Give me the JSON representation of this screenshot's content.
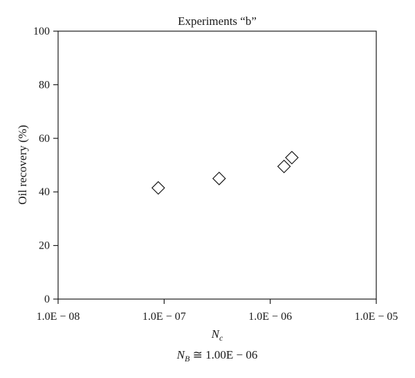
{
  "chart_data": {
    "type": "scatter",
    "title": "Experiments “b”",
    "xlabel": "N",
    "xlabel_sub": "c",
    "ylabel": "Oil recovery (%)",
    "note": {
      "var": "N",
      "sub": "B",
      "rest": " ≅ 1.00E − 06"
    },
    "x_scale": "log",
    "xlim": [
      1e-08,
      1e-05
    ],
    "ylim": [
      0,
      100
    ],
    "x_ticks": [
      {
        "value": 1e-08,
        "label": "1.0E − 08"
      },
      {
        "value": 1e-07,
        "label": "1.0E − 07"
      },
      {
        "value": 1e-06,
        "label": "1.0E − 06"
      },
      {
        "value": 1e-05,
        "label": "1.0E − 05"
      }
    ],
    "y_ticks": [
      0,
      20,
      40,
      60,
      80,
      100
    ],
    "grid": false,
    "marker": "diamond-open",
    "points": [
      {
        "x": 8.8e-08,
        "y": 41.5
      },
      {
        "x": 3.3e-07,
        "y": 45.0
      },
      {
        "x": 1.35e-06,
        "y": 49.5
      },
      {
        "x": 1.6e-06,
        "y": 52.8
      }
    ]
  }
}
